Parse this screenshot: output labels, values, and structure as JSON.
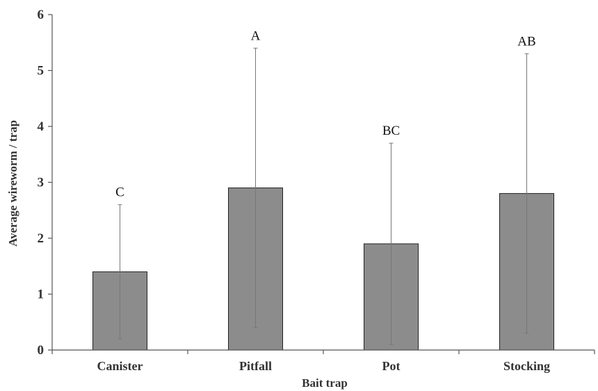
{
  "chart_data": {
    "type": "bar",
    "xlabel": "Bait trap",
    "ylabel": "Average wireworm / trap",
    "ylim": [
      0,
      6
    ],
    "yticks": [
      0,
      1,
      2,
      3,
      4,
      5,
      6
    ],
    "categories": [
      "Canister",
      "Pitfall",
      "Pot",
      "Stocking"
    ],
    "series": [
      {
        "values": [
          1.4,
          2.9,
          1.9,
          2.8
        ],
        "error_low": [
          0.2,
          0.4,
          0.1,
          0.3
        ],
        "error_high": [
          2.6,
          5.4,
          3.7,
          5.3
        ],
        "annotations": [
          "C",
          "A",
          "BC",
          "AB"
        ]
      }
    ],
    "grid": false,
    "colors": {
      "bar": "#8c8c8c",
      "bar_edge": "#222222",
      "axis": "#555555",
      "error_bar": "#777777"
    }
  }
}
